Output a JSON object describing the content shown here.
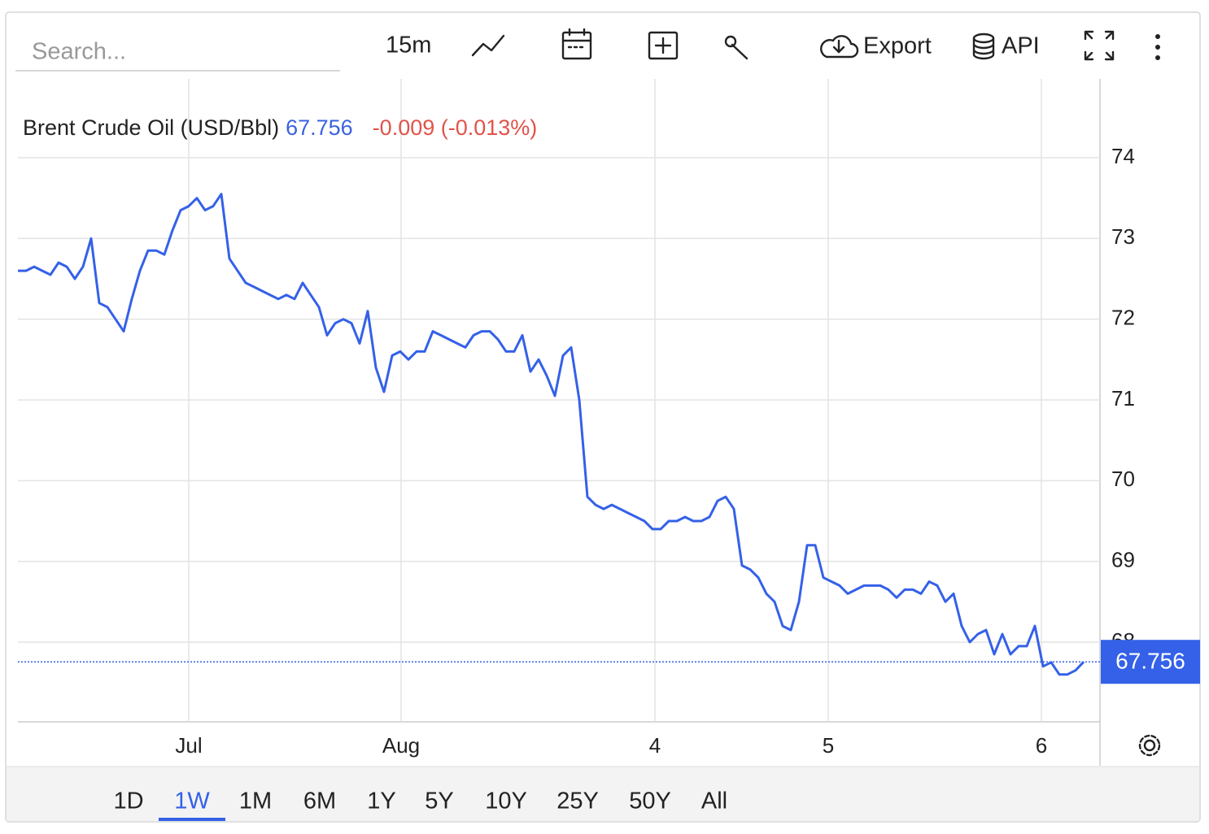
{
  "toolbar": {
    "search_placeholder": "Search...",
    "interval": "15m",
    "export": "Export",
    "api": "API"
  },
  "ranges": {
    "buttons": [
      "1D",
      "1W",
      "1M",
      "6M",
      "1Y",
      "5Y",
      "10Y",
      "25Y",
      "50Y",
      "All"
    ],
    "selected_index": 1
  },
  "chart_data": {
    "type": "line",
    "title": "Brent Crude Oil (USD/Bbl)",
    "last_value": 67.756,
    "change": "-0.009 (-0.013%)",
    "x": [
      0,
      1,
      2,
      3,
      4,
      5,
      6,
      7,
      8,
      9,
      10,
      11,
      12,
      13,
      14,
      15,
      16,
      17,
      18,
      19,
      20,
      21,
      22,
      23,
      24,
      25,
      26,
      27,
      28,
      29,
      30,
      31,
      32,
      33,
      34,
      35,
      36,
      37,
      38,
      39,
      40,
      41,
      42,
      43,
      44,
      45,
      46,
      47,
      48,
      49,
      50,
      51,
      52,
      53,
      54,
      55,
      56,
      57,
      58,
      59,
      60,
      61,
      62,
      63,
      64,
      65,
      66,
      67,
      68,
      69,
      70,
      71,
      72,
      73,
      74,
      75,
      76,
      77,
      78,
      79,
      80,
      81,
      82,
      83,
      84,
      85,
      86,
      87,
      88,
      89,
      90,
      91,
      92,
      93,
      94,
      95,
      96,
      97,
      98,
      99,
      100,
      101,
      102,
      103,
      104,
      105,
      106,
      107,
      108,
      109,
      110,
      111,
      112,
      113,
      114,
      115,
      116,
      117,
      118,
      119,
      120,
      121,
      122,
      123,
      124,
      125,
      126,
      127,
      128,
      129,
      130,
      131
    ],
    "series": [
      {
        "name": "Brent Crude Oil (USD/Bbl)",
        "color": "#3461e8",
        "values": [
          72.6,
          72.6,
          72.65,
          72.6,
          72.55,
          72.7,
          72.65,
          72.5,
          72.65,
          73.0,
          72.2,
          72.15,
          72.0,
          71.85,
          72.25,
          72.6,
          72.85,
          72.85,
          72.8,
          73.1,
          73.35,
          73.4,
          73.5,
          73.35,
          73.4,
          73.55,
          72.75,
          72.6,
          72.45,
          72.4,
          72.35,
          72.3,
          72.25,
          72.3,
          72.25,
          72.45,
          72.3,
          72.15,
          71.8,
          71.95,
          72.0,
          71.95,
          71.7,
          72.1,
          71.4,
          71.1,
          71.55,
          71.6,
          71.5,
          71.6,
          71.6,
          71.85,
          71.8,
          71.75,
          71.7,
          71.65,
          71.8,
          71.85,
          71.85,
          71.75,
          71.6,
          71.6,
          71.8,
          71.35,
          71.5,
          71.3,
          71.05,
          71.55,
          71.65,
          71.0,
          69.8,
          69.7,
          69.65,
          69.7,
          69.65,
          69.6,
          69.55,
          69.5,
          69.4,
          69.4,
          69.5,
          69.5,
          69.55,
          69.5,
          69.5,
          69.55,
          69.75,
          69.8,
          69.65,
          68.95,
          68.9,
          68.8,
          68.6,
          68.5,
          68.2,
          68.15,
          68.5,
          69.2,
          69.2,
          68.8,
          68.75,
          68.7,
          68.6,
          68.65,
          68.7,
          68.7,
          68.7,
          68.65,
          68.55,
          68.65,
          68.65,
          68.6,
          68.75,
          68.7,
          68.5,
          68.6,
          68.2,
          68.0,
          68.1,
          68.15,
          67.85,
          68.1,
          67.85,
          67.95,
          67.95,
          68.2,
          67.7,
          67.75,
          67.6,
          67.6,
          67.65,
          67.756
        ]
      }
    ],
    "xlim": [
      0,
      132.8
    ],
    "xticks": [
      {
        "value": 21,
        "label": "Jul"
      },
      {
        "value": 47.1,
        "label": "Aug"
      },
      {
        "value": 78.3,
        "label": "4"
      },
      {
        "value": 99.6,
        "label": "5"
      },
      {
        "value": 125.8,
        "label": "6"
      }
    ],
    "ylim": [
      67,
      75
    ],
    "yticks": [
      68,
      69,
      70,
      71,
      72,
      73,
      74
    ],
    "grid": true,
    "axis_side": "right"
  }
}
